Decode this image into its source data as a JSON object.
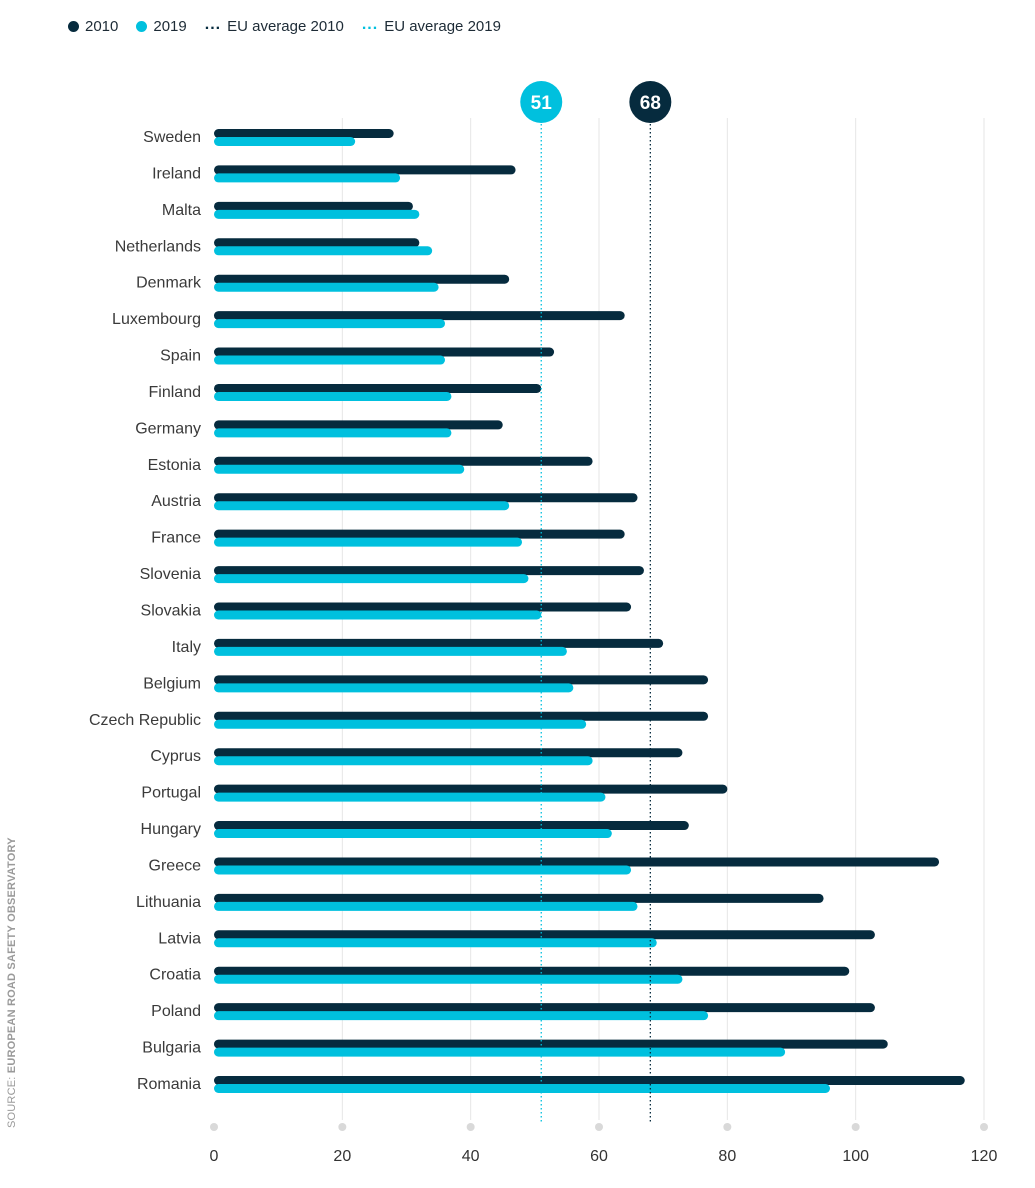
{
  "legend": {
    "s2010": "2010",
    "s2019": "2019",
    "avg2010": "EU average 2010",
    "avg2019": "EU average 2019",
    "dots": "..."
  },
  "source": {
    "prefix": "SOURCE: ",
    "name": "EUROPEAN ROAD SAFETY OBSERVATORY"
  },
  "colors": {
    "s2010": "#062b3e",
    "s2019": "#00c0de",
    "grid": "#e6e6e6",
    "tick": "#d9d9d9",
    "label": "#3a3a3a"
  },
  "chart_data": {
    "type": "bar",
    "orientation": "horizontal",
    "categories": [
      "Sweden",
      "Ireland",
      "Malta",
      "Netherlands",
      "Denmark",
      "Luxembourg",
      "Spain",
      "Finland",
      "Germany",
      "Estonia",
      "Austria",
      "France",
      "Slovenia",
      "Slovakia",
      "Italy",
      "Belgium",
      "Czech Republic",
      "Cyprus",
      "Portugal",
      "Hungary",
      "Greece",
      "Lithuania",
      "Latvia",
      "Croatia",
      "Poland",
      "Bulgaria",
      "Romania"
    ],
    "series": [
      {
        "name": "2010",
        "values": [
          28,
          47,
          31,
          32,
          46,
          64,
          53,
          51,
          45,
          59,
          66,
          64,
          67,
          65,
          70,
          77,
          77,
          73,
          80,
          74,
          113,
          95,
          103,
          99,
          103,
          105,
          117
        ]
      },
      {
        "name": "2019",
        "values": [
          22,
          29,
          32,
          34,
          35,
          36,
          36,
          37,
          37,
          39,
          46,
          48,
          49,
          51,
          55,
          56,
          58,
          59,
          61,
          62,
          65,
          66,
          69,
          73,
          77,
          89,
          96
        ]
      }
    ],
    "reference_lines": [
      {
        "name": "EU average 2019",
        "value": 51,
        "label": "51"
      },
      {
        "name": "EU average 2010",
        "value": 68,
        "label": "68"
      }
    ],
    "xlim": [
      0,
      120
    ],
    "xticks": [
      "0",
      "20",
      "40",
      "60",
      "80",
      "100",
      "120"
    ],
    "xtick_values": [
      0,
      20,
      40,
      60,
      80,
      100,
      120
    ],
    "grid": true,
    "legend_position": "top-left",
    "title": "",
    "xlabel": "",
    "ylabel": ""
  }
}
